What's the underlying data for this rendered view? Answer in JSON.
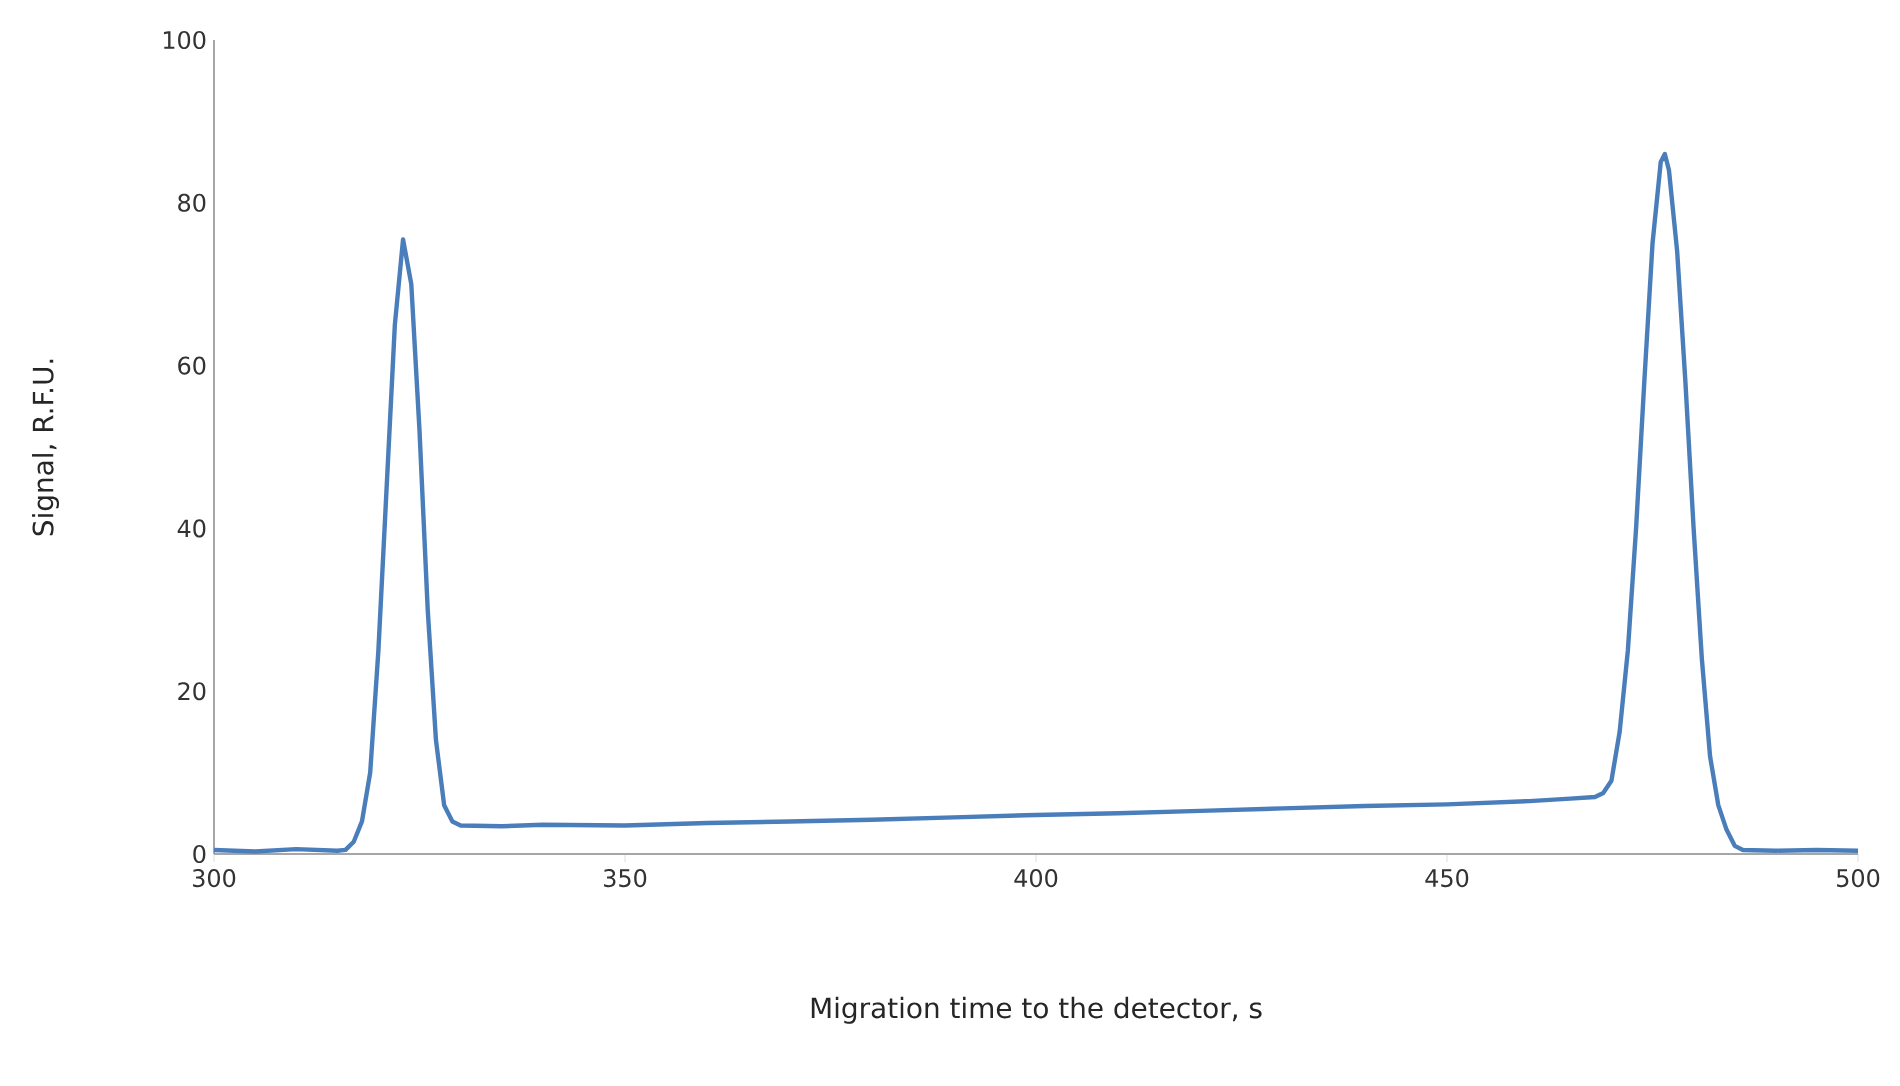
{
  "chart_data": {
    "type": "line",
    "xlabel": "Migration time to the detector, s",
    "ylabel": "Signal, R.F.U.",
    "xlim": [
      300,
      500
    ],
    "ylim": [
      0,
      100
    ],
    "xticks": [
      300,
      350,
      400,
      450,
      500
    ],
    "yticks": [
      0,
      20,
      40,
      60,
      80,
      100
    ],
    "grid": false,
    "marker": "none",
    "line_style": "solid",
    "series": [
      {
        "color": "#4a7ebb",
        "x": [
          300,
          305,
          310,
          315,
          316,
          317,
          318,
          319,
          320,
          321,
          322,
          323,
          324,
          325,
          326,
          327,
          328,
          329,
          330,
          335,
          340,
          350,
          360,
          370,
          380,
          390,
          400,
          410,
          420,
          430,
          440,
          450,
          460,
          465,
          468,
          469,
          470,
          471,
          472,
          473,
          474,
          475,
          476,
          476.5,
          477,
          478,
          479,
          480,
          481,
          482,
          483,
          484,
          485,
          486,
          490,
          495,
          500
        ],
        "values": [
          0.5,
          0.3,
          0.6,
          0.4,
          0.5,
          1.5,
          4,
          10,
          25,
          45,
          65,
          75.5,
          70,
          52,
          30,
          14,
          6,
          4,
          3.5,
          3.4,
          3.6,
          3.5,
          3.8,
          4,
          4.2,
          4.5,
          4.8,
          5,
          5.3,
          5.6,
          5.9,
          6.1,
          6.5,
          6.8,
          7,
          7.5,
          9,
          15,
          25,
          40,
          58,
          75,
          85,
          86,
          84,
          74,
          58,
          40,
          24,
          12,
          6,
          3,
          1,
          0.5,
          0.4,
          0.5,
          0.4
        ]
      }
    ]
  }
}
